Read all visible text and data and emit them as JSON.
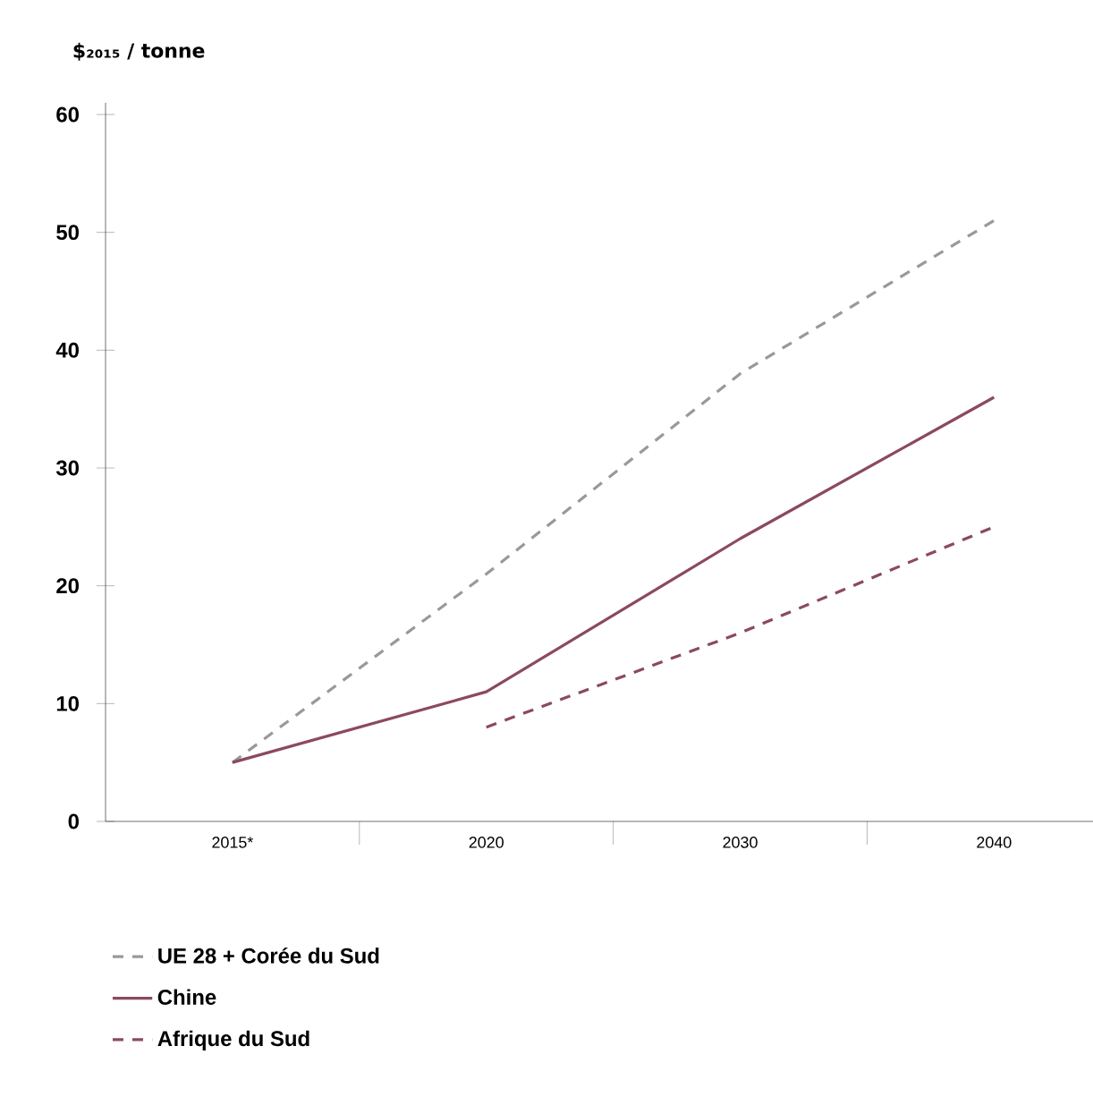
{
  "chart_data": {
    "type": "line",
    "ylabel": "$₂₀₁₅ / tonne",
    "categories": [
      "2015*",
      "2020",
      "2030",
      "2040"
    ],
    "series": [
      {
        "name": "UE 28 + Corée du Sud",
        "color": "#999999",
        "line_style": "dashed",
        "values": [
          5,
          21,
          38,
          51
        ]
      },
      {
        "name": "Chine",
        "color": "#8b4a5e",
        "line_style": "solid",
        "values": [
          5,
          11,
          24,
          36
        ]
      },
      {
        "name": "Afrique du Sud",
        "color": "#8b4a5e",
        "line_style": "dashed",
        "values": [
          null,
          8,
          16,
          25
        ]
      }
    ],
    "ylim": [
      0,
      61
    ],
    "yticks": [
      0,
      10,
      20,
      30,
      40,
      50,
      60
    ],
    "legend": "bottom",
    "marker": "none"
  }
}
